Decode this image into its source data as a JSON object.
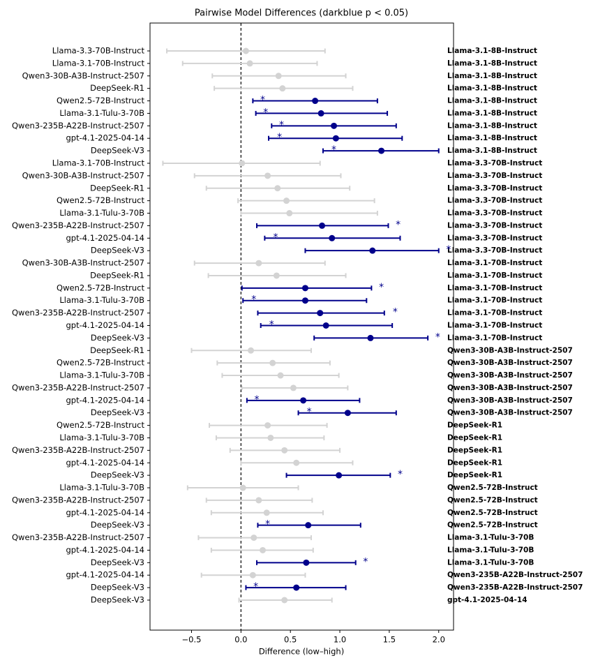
{
  "chart_data": {
    "type": "forest",
    "title": "Pairwise Model Differences (darkblue p < 0.05)",
    "x_label": "Difference (low–high)",
    "categories": [
      "Llama-3.3-70B-Instruct",
      "Llama-3.1-70B-Instruct",
      "Qwen3-30B-A3B-Instruct-2507",
      "DeepSeek-R1",
      "Qwen2.5-72B-Instruct",
      "Llama-3.1-Tulu-3-70B",
      "Qwen3-235B-A22B-Instruct-2507",
      "gpt-4.1-2025-04-14",
      "DeepSeek-V3",
      "Llama-3.1-70B-Instruct",
      "Qwen3-30B-A3B-Instruct-2507",
      "DeepSeek-R1",
      "Qwen2.5-72B-Instruct",
      "Llama-3.1-Tulu-3-70B",
      "Qwen3-235B-A22B-Instruct-2507",
      "gpt-4.1-2025-04-14",
      "DeepSeek-V3",
      "Qwen3-30B-A3B-Instruct-2507",
      "DeepSeek-R1",
      "Qwen2.5-72B-Instruct",
      "Llama-3.1-Tulu-3-70B",
      "Qwen3-235B-A22B-Instruct-2507",
      "gpt-4.1-2025-04-14",
      "DeepSeek-V3",
      "DeepSeek-R1",
      "Qwen2.5-72B-Instruct",
      "Llama-3.1-Tulu-3-70B",
      "Qwen3-235B-A22B-Instruct-2507",
      "gpt-4.1-2025-04-14",
      "DeepSeek-V3",
      "Qwen2.5-72B-Instruct",
      "Llama-3.1-Tulu-3-70B",
      "Qwen3-235B-A22B-Instruct-2507",
      "gpt-4.1-2025-04-14",
      "DeepSeek-V3",
      "Llama-3.1-Tulu-3-70B",
      "Qwen3-235B-A22B-Instruct-2507",
      "gpt-4.1-2025-04-14",
      "DeepSeek-V3",
      "Qwen3-235B-A22B-Instruct-2507",
      "gpt-4.1-2025-04-14",
      "DeepSeek-V3",
      "gpt-4.1-2025-04-14",
      "DeepSeek-V3",
      "DeepSeek-V3"
    ],
    "right_labels": [
      "Llama-3.1-8B-Instruct",
      "Llama-3.1-8B-Instruct",
      "Llama-3.1-8B-Instruct",
      "Llama-3.1-8B-Instruct",
      "Llama-3.1-8B-Instruct",
      "Llama-3.1-8B-Instruct",
      "Llama-3.1-8B-Instruct",
      "Llama-3.1-8B-Instruct",
      "Llama-3.1-8B-Instruct",
      "Llama-3.3-70B-Instruct",
      "Llama-3.3-70B-Instruct",
      "Llama-3.3-70B-Instruct",
      "Llama-3.3-70B-Instruct",
      "Llama-3.3-70B-Instruct",
      "Llama-3.3-70B-Instruct",
      "Llama-3.3-70B-Instruct",
      "Llama-3.3-70B-Instruct",
      "Llama-3.1-70B-Instruct",
      "Llama-3.1-70B-Instruct",
      "Llama-3.1-70B-Instruct",
      "Llama-3.1-70B-Instruct",
      "Llama-3.1-70B-Instruct",
      "Llama-3.1-70B-Instruct",
      "Llama-3.1-70B-Instruct",
      "Qwen3-30B-A3B-Instruct-2507",
      "Qwen3-30B-A3B-Instruct-2507",
      "Qwen3-30B-A3B-Instruct-2507",
      "Qwen3-30B-A3B-Instruct-2507",
      "Qwen3-30B-A3B-Instruct-2507",
      "Qwen3-30B-A3B-Instruct-2507",
      "DeepSeek-R1",
      "DeepSeek-R1",
      "DeepSeek-R1",
      "DeepSeek-R1",
      "DeepSeek-R1",
      "Qwen2.5-72B-Instruct",
      "Qwen2.5-72B-Instruct",
      "Qwen2.5-72B-Instruct",
      "Qwen2.5-72B-Instruct",
      "Llama-3.1-Tulu-3-70B",
      "Llama-3.1-Tulu-3-70B",
      "Llama-3.1-Tulu-3-70B",
      "Qwen3-235B-A22B-Instruct-2507",
      "Qwen3-235B-A22B-Instruct-2507",
      "gpt-4.1-2025-04-14"
    ],
    "values": [
      0.05,
      0.09,
      0.38,
      0.42,
      0.75,
      0.81,
      0.94,
      0.96,
      1.42,
      0.01,
      0.27,
      0.37,
      0.46,
      0.49,
      0.82,
      0.92,
      1.33,
      0.18,
      0.36,
      0.65,
      0.65,
      0.8,
      0.86,
      1.31,
      0.1,
      0.32,
      0.4,
      0.53,
      0.63,
      1.08,
      0.27,
      0.3,
      0.44,
      0.56,
      0.99,
      0.02,
      0.18,
      0.26,
      0.68,
      0.13,
      0.22,
      0.66,
      0.12,
      0.56,
      0.44
    ],
    "low": [
      -0.75,
      -0.59,
      -0.29,
      -0.27,
      0.12,
      0.15,
      0.31,
      0.28,
      0.83,
      -0.79,
      -0.47,
      -0.35,
      -0.03,
      0.0,
      0.16,
      0.24,
      0.65,
      -0.47,
      -0.33,
      0.01,
      0.02,
      0.17,
      0.2,
      0.74,
      -0.5,
      -0.24,
      -0.19,
      0.01,
      0.06,
      0.58,
      -0.32,
      -0.25,
      -0.11,
      0.0,
      0.46,
      -0.54,
      -0.35,
      -0.3,
      0.17,
      -0.43,
      -0.3,
      0.16,
      -0.4,
      0.05,
      -0.02
    ],
    "high": [
      0.85,
      0.77,
      1.06,
      1.13,
      1.38,
      1.48,
      1.57,
      1.63,
      2.0,
      0.8,
      1.01,
      1.1,
      1.35,
      1.38,
      1.49,
      1.61,
      2.0,
      0.85,
      1.06,
      1.32,
      1.27,
      1.45,
      1.53,
      1.89,
      0.71,
      0.9,
      0.99,
      1.08,
      1.2,
      1.57,
      0.87,
      0.84,
      1.0,
      1.13,
      1.51,
      0.58,
      0.72,
      0.83,
      1.21,
      0.71,
      0.73,
      1.16,
      0.65,
      1.06,
      0.92
    ],
    "significant": [
      false,
      false,
      false,
      false,
      true,
      true,
      true,
      true,
      true,
      false,
      false,
      false,
      false,
      false,
      true,
      true,
      true,
      false,
      false,
      true,
      true,
      true,
      true,
      true,
      false,
      false,
      false,
      false,
      true,
      true,
      false,
      false,
      false,
      false,
      true,
      false,
      false,
      false,
      true,
      false,
      false,
      true,
      false,
      true,
      false
    ],
    "star_text": "*",
    "star_x": [
      null,
      null,
      null,
      null,
      0.22,
      0.25,
      0.41,
      0.39,
      0.94,
      null,
      null,
      null,
      null,
      null,
      1.59,
      0.35,
      2.1,
      null,
      null,
      1.42,
      0.13,
      1.56,
      0.31,
      1.99,
      null,
      null,
      null,
      null,
      0.16,
      0.69,
      null,
      null,
      null,
      null,
      1.61,
      null,
      null,
      null,
      0.27,
      null,
      null,
      1.26,
      null,
      0.15,
      null
    ],
    "sig_color": "#00008b",
    "ns_color": "#d3d3d3",
    "xlim": [
      -0.92,
      2.15
    ],
    "xticks": [
      {
        "value": -0.5,
        "label": "−0.5"
      },
      {
        "value": 0,
        "label": "0.0"
      },
      {
        "value": 0.5,
        "label": "0.5"
      },
      {
        "value": 1,
        "label": "1.0"
      },
      {
        "value": 1.5,
        "label": "1.5"
      },
      {
        "value": 2,
        "label": "2.0"
      }
    ],
    "zero_line": true
  }
}
